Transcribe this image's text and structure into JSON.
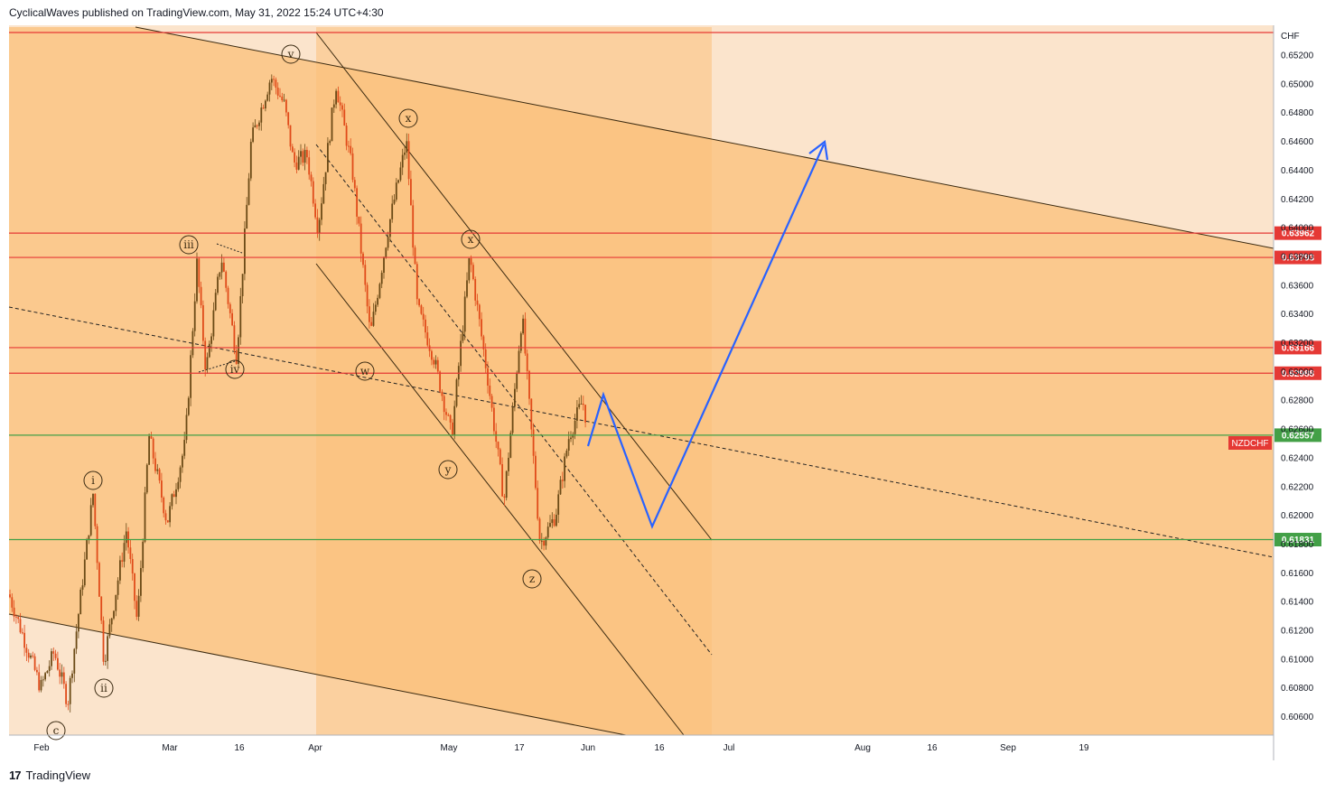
{
  "header": {
    "publisher_line": "CyclicalWaves published on TradingView.com, May 31, 2022 15:24 UTC+4:30"
  },
  "footer": {
    "brand_mark": "17",
    "brand": "TradingView"
  },
  "chart_data": {
    "type": "candlestick",
    "symbol_badge": "NZDCHF",
    "currency_label": "CHF",
    "y_axis": {
      "range": [
        0.6048,
        0.654
      ],
      "ticks": [
        "0.65200",
        "0.65000",
        "0.64800",
        "0.64600",
        "0.64400",
        "0.64200",
        "0.64000",
        "0.63800",
        "0.63600",
        "0.63400",
        "0.63200",
        "0.63000",
        "0.62800",
        "0.62600",
        "0.62400",
        "0.62200",
        "0.62000",
        "0.61800",
        "0.61600",
        "0.61400",
        "0.61200",
        "0.61000",
        "0.60800",
        "0.60600"
      ]
    },
    "x_axis": {
      "tick_labels": [
        "Feb",
        "Mar",
        "16",
        "Apr",
        "May",
        "17",
        "Jun",
        "16",
        "Jul",
        "Aug",
        "16",
        "Sep",
        "19"
      ]
    },
    "horizontal_levels": [
      {
        "label": "",
        "value": 0.65357,
        "color": "#e53935"
      },
      {
        "label": "0.63962",
        "value": 0.63962,
        "color": "#e53935"
      },
      {
        "label": "0.63793",
        "value": 0.63793,
        "color": "#e53935"
      },
      {
        "label": "0.63166",
        "value": 0.63166,
        "color": "#e53935"
      },
      {
        "label": "0.62988",
        "value": 0.62988,
        "color": "#e53935"
      },
      {
        "label": "0.62557",
        "value": 0.62557,
        "color": "#43a047"
      },
      {
        "label": "0.61831",
        "value": 0.61831,
        "color": "#43a047"
      }
    ],
    "wave_labels": [
      "v",
      "x",
      "x",
      "iii",
      "iv",
      "w",
      "y",
      "z",
      "i",
      "ii",
      "c"
    ],
    "colors": {
      "outer_zone": "#fbe4cc",
      "channel_zone": "#fbc98e",
      "inner_zone": "#fbc07a",
      "level_red": "#e53935",
      "level_green": "#43a047",
      "projection": "#2962ff",
      "candle_up": "#6b4a16",
      "candle_down": "#e04b1a"
    }
  }
}
